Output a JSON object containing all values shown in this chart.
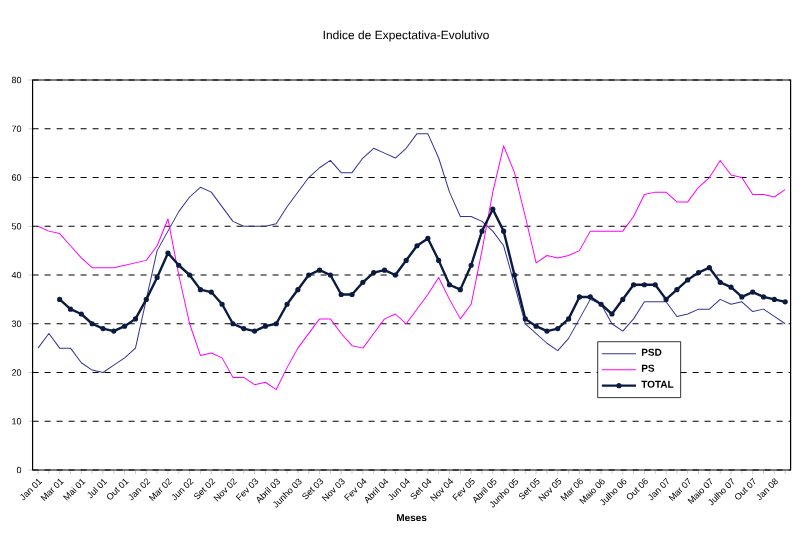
{
  "chart_data": {
    "type": "line",
    "title": "Indice de Expectativa-Evolutivo",
    "xlabel": "Meses",
    "categories": [
      "Jan 01",
      null,
      "Mar 01",
      null,
      "Mai 01",
      null,
      "Jul 01",
      null,
      "Out 01",
      null,
      "Jan 02",
      null,
      "Mar 02",
      null,
      "Jun 02",
      null,
      "Set 02",
      null,
      "Nov 02",
      null,
      "Fev 03",
      null,
      "Abril 03",
      null,
      "Junho 03",
      null,
      "Set 03",
      null,
      "Nov 03",
      null,
      "Fev 04",
      null,
      "Abril 04",
      null,
      "Jun 04",
      null,
      "Set 04",
      null,
      "Nov 04",
      null,
      "Fev 05",
      null,
      "Abril 05",
      null,
      "Junho 05",
      null,
      "Set 05",
      null,
      "Nov 05",
      null,
      "Mar 06",
      null,
      "Maio 06",
      null,
      "Julho 06",
      null,
      "Out 06",
      null,
      "Jan 07",
      null,
      "Mar 07",
      null,
      "Maio 07",
      null,
      "Julho 07",
      null,
      "Out 07",
      null,
      "Jan 08",
      null
    ],
    "series": [
      {
        "name": "PSD",
        "color": "#333399",
        "values": [
          25,
          28,
          25,
          25,
          22,
          20.5,
          20,
          21.5,
          23,
          25,
          35,
          45,
          49,
          53,
          56,
          58,
          57,
          54,
          51,
          50,
          50,
          50,
          50.5,
          54,
          57,
          60,
          62,
          63.5,
          61,
          61,
          64,
          66,
          65,
          64,
          66,
          69,
          69,
          64,
          57,
          52,
          52,
          51,
          49,
          46,
          38,
          30,
          28,
          26,
          24.5,
          27,
          31,
          35,
          34,
          30,
          28.5,
          31,
          34.5,
          34.5,
          34.5,
          31.5,
          32,
          33,
          33,
          35,
          34,
          34.5,
          32.5,
          33,
          31.5,
          30
        ]
      },
      {
        "name": "PS",
        "color": "#ff00ff",
        "values": [
          50,
          49,
          48.5,
          46,
          43.5,
          41.5,
          41.5,
          41.5,
          42,
          42.5,
          43,
          46,
          51.5,
          40,
          30,
          23.5,
          24,
          23,
          19,
          19,
          17.5,
          18,
          16.5,
          21,
          25,
          28,
          31,
          31,
          28,
          25.5,
          25,
          28,
          31,
          32,
          30,
          33,
          36,
          39.5,
          35,
          31,
          34,
          45,
          57,
          66.5,
          61,
          52,
          42.5,
          44,
          43.5,
          44,
          45,
          49,
          49,
          49,
          49,
          52,
          56.5,
          57,
          57,
          55,
          55,
          58,
          60,
          63.5,
          60.5,
          60,
          56.5,
          56.5,
          56,
          57.5
        ]
      },
      {
        "name": "TOTAL",
        "color": "#0a1a40",
        "marker": "circle",
        "values": [
          null,
          null,
          35,
          33,
          32,
          30,
          29,
          28.5,
          29.5,
          31,
          35,
          39.5,
          44.5,
          42,
          40,
          37,
          36.5,
          34,
          30,
          29,
          28.5,
          29.5,
          30,
          34,
          37,
          40,
          41,
          40,
          36,
          36,
          38.5,
          40.5,
          41,
          40,
          43,
          46,
          47.5,
          43,
          38,
          37,
          42,
          49,
          53.5,
          49,
          40,
          31,
          29.5,
          28.5,
          29,
          31,
          35.5,
          35.5,
          34,
          32,
          35,
          38,
          38,
          38,
          35,
          37,
          39,
          40.5,
          41.5,
          38.5,
          37.5,
          35.5,
          36.5,
          35.5,
          35,
          34.5
        ]
      }
    ],
    "ylim": [
      0,
      80
    ],
    "yticks": [
      0,
      10,
      20,
      30,
      40,
      50,
      60,
      70,
      80
    ],
    "grid": "y",
    "legend": "bottom right"
  }
}
